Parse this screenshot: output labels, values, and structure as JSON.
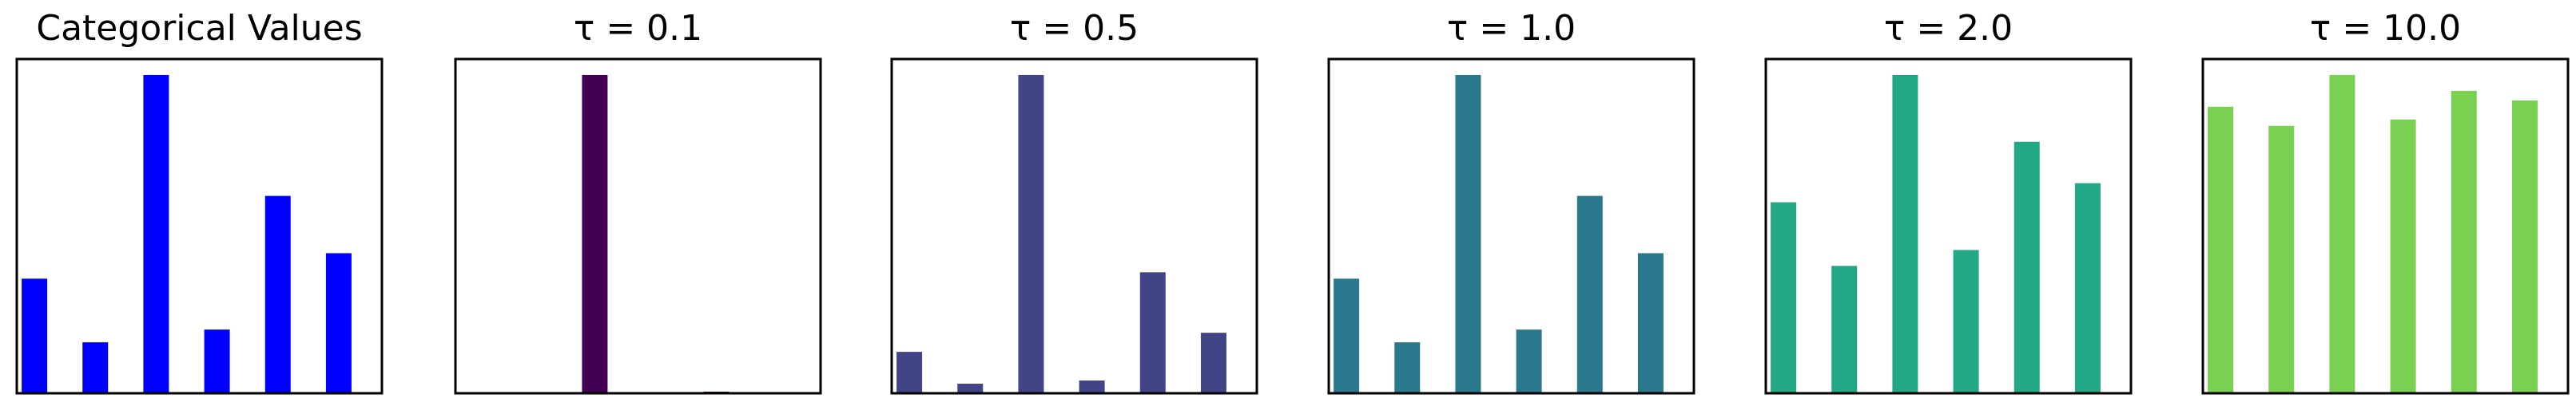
{
  "chart_data": [
    {
      "type": "bar",
      "title": "Categorical Values",
      "values": [
        0.36,
        0.16,
        1.0,
        0.2,
        0.62,
        0.44
      ],
      "color": "#0000ff",
      "ylim": [
        0,
        1.05
      ]
    },
    {
      "type": "bar",
      "title": "τ = 0.1",
      "values": [
        0,
        0,
        1.0,
        0,
        0.005,
        0
      ],
      "color": "#440154",
      "ylim": [
        0,
        1.05
      ]
    },
    {
      "type": "bar",
      "title": "τ = 0.5",
      "values": [
        0.13,
        0.03,
        1.0,
        0.04,
        0.38,
        0.19
      ],
      "color": "#414487",
      "ylim": [
        0,
        1.05
      ]
    },
    {
      "type": "bar",
      "title": "τ = 1.0",
      "values": [
        0.36,
        0.16,
        1.0,
        0.2,
        0.62,
        0.44
      ],
      "color": "#2a788e",
      "ylim": [
        0,
        1.05
      ]
    },
    {
      "type": "bar",
      "title": "τ = 2.0",
      "values": [
        0.6,
        0.4,
        1.0,
        0.45,
        0.79,
        0.66
      ],
      "color": "#22a884",
      "ylim": [
        0,
        1.05
      ]
    },
    {
      "type": "bar",
      "title": "τ = 10.0",
      "values": [
        0.9,
        0.84,
        1.0,
        0.86,
        0.95,
        0.92
      ],
      "color": "#7ad151",
      "ylim": [
        0,
        1.05
      ]
    }
  ]
}
